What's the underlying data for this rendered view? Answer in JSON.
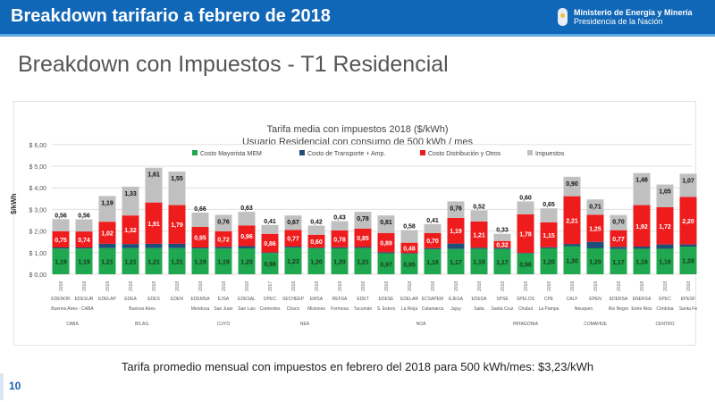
{
  "header": {
    "title": "Breakdown tarifario a febrero de 2018",
    "ministry": "Ministerio de Energía y Minería",
    "presidency": "Presidencia de la Nación"
  },
  "subtitle": "Breakdown con Impuestos - T1 Residencial",
  "footer": "Tarifa promedio mensual con impuestos en febrero del 2018 para 500 kWh/mes: $3,23/kWh",
  "page_number": "10",
  "chart_data": {
    "type": "bar",
    "stacked": true,
    "title": "Tarifa media con impuestos  2018  ($/kWh)",
    "subtitle": "Usuario Residencial con consumo de 500 kWh / mes",
    "ylabel": "$/kWh",
    "ylim": [
      0,
      6
    ],
    "yticks": [
      "$ 0,00",
      "$ 1,00",
      "$ 2,00",
      "$ 3,00",
      "$ 4,00",
      "$ 5,00",
      "$ 6,00"
    ],
    "grid": true,
    "legend_position": "top",
    "colors": {
      "mem": "#1fa84f",
      "transporte": "#1f4e79",
      "distribucion": "#ee1c1c",
      "impuestos": "#c0c0c0"
    },
    "series": [
      {
        "key": "mem",
        "name": "Costo Mayorista MEM"
      },
      {
        "key": "transporte",
        "name": "Costo de Transporte + Amp."
      },
      {
        "key": "distribucion",
        "name": "Costo Distribución y Otros"
      },
      {
        "key": "impuestos",
        "name": "Impuestos"
      }
    ],
    "categories": [
      {
        "company": "EDENOR",
        "year": "2018",
        "province": "Buenos Aires - CABA",
        "mem": 1.19,
        "transporte": 0.05,
        "distribucion": 0.75,
        "impuestos": 0.56
      },
      {
        "company": "EDESUR",
        "year": "2018",
        "province": "",
        "mem": 1.19,
        "transporte": 0.05,
        "distribucion": 0.74,
        "impuestos": 0.56
      },
      {
        "company": "EDELAP",
        "year": "2018",
        "province": "",
        "mem": 1.21,
        "transporte": 0.2,
        "distribucion": 1.02,
        "impuestos": 1.19
      },
      {
        "company": "EDEA",
        "year": "2018",
        "province": "Buenos Aires",
        "mem": 1.21,
        "transporte": 0.19,
        "distribucion": 1.32,
        "impuestos": 1.33
      },
      {
        "company": "EDES",
        "year": "2018",
        "province": "",
        "mem": 1.21,
        "transporte": 0.2,
        "distribucion": 1.91,
        "impuestos": 1.61
      },
      {
        "company": "EDEN",
        "year": "2018",
        "province": "",
        "mem": 1.21,
        "transporte": 0.2,
        "distribucion": 1.79,
        "impuestos": 1.55
      },
      {
        "company": "EDEMSA",
        "year": "2018",
        "province": "Mendoza",
        "mem": 1.19,
        "transporte": 0.05,
        "distribucion": 0.95,
        "impuestos": 0.66
      },
      {
        "company": "EJSA",
        "year": "2018",
        "province": "San Juan",
        "mem": 1.19,
        "transporte": 0.08,
        "distribucion": 0.72,
        "impuestos": 0.76
      },
      {
        "company": "EDESAL",
        "year": "2018",
        "province": "San Luis",
        "mem": 1.2,
        "transporte": 0.1,
        "distribucion": 0.96,
        "impuestos": 0.63
      },
      {
        "company": "DPEC",
        "year": "2017",
        "province": "Corrientes",
        "mem": 0.98,
        "transporte": 0.03,
        "distribucion": 0.86,
        "impuestos": 0.41
      },
      {
        "company": "SECHEEP",
        "year": "2018",
        "province": "Chaco",
        "mem": 1.23,
        "transporte": 0.05,
        "distribucion": 0.77,
        "impuestos": 0.67
      },
      {
        "company": "EMSA",
        "year": "2018",
        "province": "Misiones",
        "mem": 1.2,
        "transporte": 0.03,
        "distribucion": 0.6,
        "impuestos": 0.42
      },
      {
        "company": "REFSA",
        "year": "2018",
        "province": "Formosa",
        "mem": 1.2,
        "transporte": 0.05,
        "distribucion": 0.78,
        "impuestos": 0.43
      },
      {
        "company": "EDET",
        "year": "2018",
        "province": "Tucumán",
        "mem": 1.21,
        "transporte": 0.05,
        "distribucion": 0.85,
        "impuestos": 0.78
      },
      {
        "company": "EDESE",
        "year": "2018",
        "province": "S. Estero",
        "mem": 0.97,
        "transporte": 0.05,
        "distribucion": 0.89,
        "impuestos": 0.81
      },
      {
        "company": "EDELAR",
        "year": "2018",
        "province": "La Rioja",
        "mem": 0.95,
        "transporte": 0.03,
        "distribucion": 0.48,
        "impuestos": 0.58
      },
      {
        "company": "ECSAPEM",
        "year": "2018",
        "province": "Catamarca",
        "mem": 1.16,
        "transporte": 0.05,
        "distribucion": 0.7,
        "impuestos": 0.41
      },
      {
        "company": "EJESA",
        "year": "2018",
        "province": "Jujuy",
        "mem": 1.17,
        "transporte": 0.25,
        "distribucion": 1.19,
        "impuestos": 0.76
      },
      {
        "company": "EDESA",
        "year": "2018",
        "province": "Salta",
        "mem": 1.18,
        "transporte": 0.05,
        "distribucion": 1.21,
        "impuestos": 0.52
      },
      {
        "company": "SPSE",
        "year": "2018",
        "province": "Santa Cruz",
        "mem": 1.17,
        "transporte": 0.05,
        "distribucion": 0.32,
        "impuestos": 0.33
      },
      {
        "company": "SPELOS",
        "year": "2018",
        "province": "Chubut",
        "mem": 0.96,
        "transporte": 0.03,
        "distribucion": 1.78,
        "impuestos": 0.6
      },
      {
        "company": "CPE",
        "year": "2018",
        "province": "La Pampa",
        "mem": 1.2,
        "transporte": 0.05,
        "distribucion": 1.15,
        "impuestos": 0.65
      },
      {
        "company": "CALF",
        "year": "2018",
        "province": "Neuquen",
        "mem": 1.3,
        "transporte": 0.1,
        "distribucion": 2.21,
        "impuestos": 0.9
      },
      {
        "company": "EPEN",
        "year": "2018",
        "province": "",
        "mem": 1.2,
        "transporte": 0.3,
        "distribucion": 1.25,
        "impuestos": 0.71
      },
      {
        "company": "EDERSA",
        "year": "2018",
        "province": "Rio Negro",
        "mem": 1.17,
        "transporte": 0.1,
        "distribucion": 0.77,
        "impuestos": 0.7
      },
      {
        "company": "ENERSA",
        "year": "2018",
        "province": "Entre Rios",
        "mem": 1.18,
        "transporte": 0.1,
        "distribucion": 1.92,
        "impuestos": 1.48
      },
      {
        "company": "EPEC",
        "year": "2018",
        "province": "Córdoba",
        "mem": 1.18,
        "transporte": 0.2,
        "distribucion": 1.72,
        "impuestos": 1.05
      },
      {
        "company": "EPESF",
        "year": "2018",
        "province": "Santa Fe",
        "mem": 1.28,
        "transporte": 0.1,
        "distribucion": 2.2,
        "impuestos": 1.07
      }
    ],
    "regions": [
      {
        "label": "CABA",
        "from": 0,
        "to": 1
      },
      {
        "label": "BS.AS.",
        "from": 2,
        "to": 5
      },
      {
        "label": "CUYO",
        "from": 6,
        "to": 8
      },
      {
        "label": "NEA",
        "from": 9,
        "to": 12
      },
      {
        "label": "NOA",
        "from": 13,
        "to": 18
      },
      {
        "label": "PATAGONIA",
        "from": 19,
        "to": 21
      },
      {
        "label": "COMAHUE",
        "from": 22,
        "to": 24
      },
      {
        "label": "CENTRO",
        "from": 25,
        "to": 27
      }
    ]
  }
}
